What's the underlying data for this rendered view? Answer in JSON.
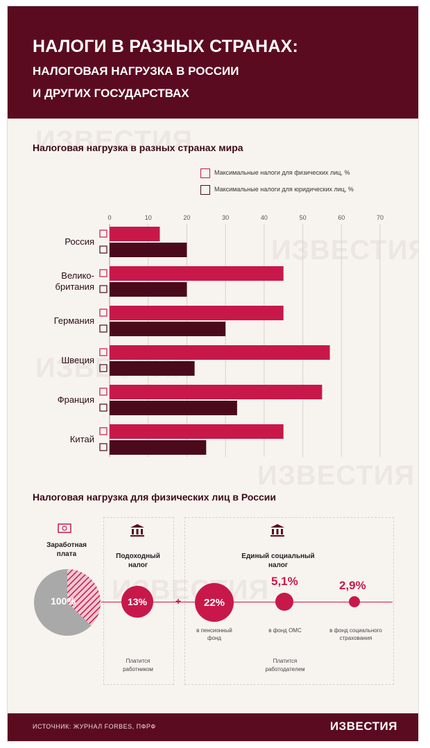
{
  "header": {
    "title": "НАЛОГИ В РАЗНЫХ СТРАНАХ:",
    "subtitle_line1": "НАЛОГОВАЯ НАГРУЗКА В РОССИИ",
    "subtitle_line2": "И ДРУГИХ ГОСУДАРСТВАХ"
  },
  "section1": {
    "title": "Налоговая нагрузка в разных странах мира"
  },
  "chart_data": {
    "type": "bar",
    "orientation": "horizontal",
    "title": "Налоговая нагрузка в разных странах мира",
    "categories": [
      "Россия",
      "Велико-британия",
      "Германия",
      "Швеция",
      "Франция",
      "Китай"
    ],
    "category_lines": [
      [
        "Россия"
      ],
      [
        "Велико-",
        "британия"
      ],
      [
        "Германия"
      ],
      [
        "Швеция"
      ],
      [
        "Франция"
      ],
      [
        "Китай"
      ]
    ],
    "series": [
      {
        "name": "Максимальные налоги для физических лиц, %",
        "values": [
          13,
          45,
          45,
          57,
          55,
          45
        ]
      },
      {
        "name": "Максимальные налоги для юридических лиц, %",
        "values": [
          20,
          20,
          30,
          22,
          33,
          25
        ]
      }
    ],
    "xlim": [
      0,
      70
    ],
    "ticks": [
      0,
      10,
      20,
      30,
      40,
      50,
      60,
      70
    ],
    "legend_position": "top-right",
    "grid": true
  },
  "section2": {
    "title": "Налоговая нагрузка для физических лиц в России",
    "salary": {
      "label_line1": "Заработная",
      "label_line2": "плата",
      "value": "100%"
    },
    "income_tax": {
      "label_line1": "Подоходный",
      "label_line2": "налог",
      "value": "13%",
      "note_line1": "Платится",
      "note_line2": "работником"
    },
    "plus_sign": "+",
    "social_tax": {
      "label_line1": "Единый социальный",
      "label_line2": "налог",
      "items": [
        {
          "value": "22%",
          "label_line1": "в пенсионный",
          "label_line2": "фонд"
        },
        {
          "value": "5,1%",
          "label_line1": "в фонд ОМС",
          "label_line2": ""
        },
        {
          "value": "2,9%",
          "label_line1": "в фонд социального",
          "label_line2": "страхования"
        }
      ],
      "note_line1": "Платится",
      "note_line2": "работодателем"
    }
  },
  "footer": {
    "source": "ИСТОЧНИК: ЖУРНАЛ FORBES, ПФРФ",
    "logo": "ИЗВЕСТИЯ"
  },
  "watermark": "ИЗВЕСТИЯ",
  "colors": {
    "header": "#5b0b20",
    "series_individual": "#c8184a",
    "series_legal": "#4a0a1c",
    "accent": "#c8184a",
    "background": "#f7f4ef"
  },
  "icons": {
    "individual": "wallet-icon",
    "legal": "building-icon",
    "salary": "banknote-icon",
    "tax": "bank-icon"
  }
}
